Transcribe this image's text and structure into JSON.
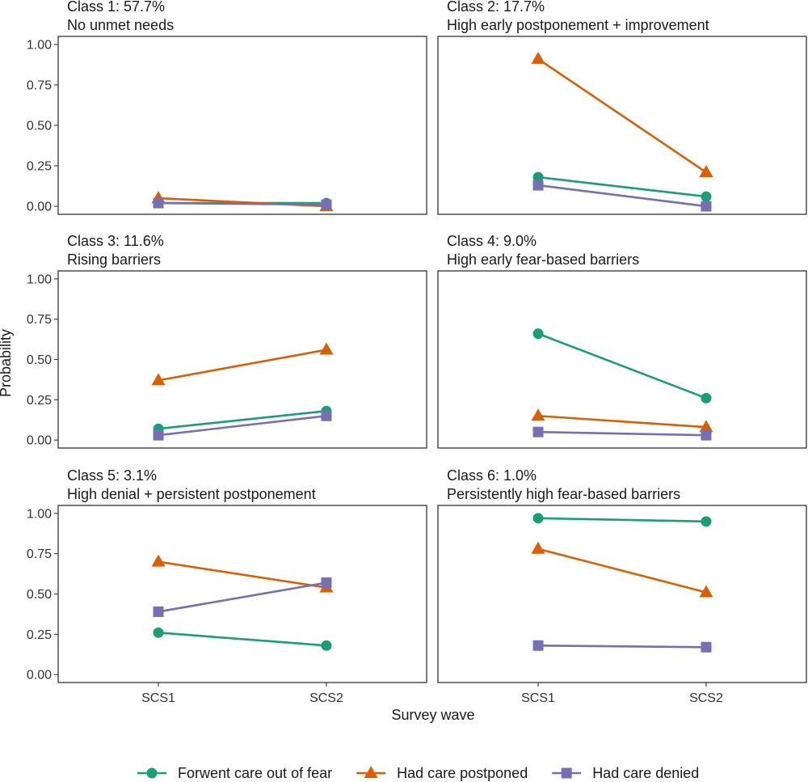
{
  "chart_data": {
    "type": "line",
    "xlabel": "Survey wave",
    "ylabel": "Probability",
    "categories": [
      "SCS1",
      "SCS2"
    ],
    "ylim": [
      0,
      1
    ],
    "yticks": [
      "0.00",
      "0.25",
      "0.50",
      "0.75",
      "1.00"
    ],
    "ytick_values": [
      0,
      0.25,
      0.5,
      0.75,
      1
    ],
    "legend": {
      "position": "bottom",
      "entries": [
        {
          "key": "fear",
          "label": "Forwent care out of fear",
          "color": "#1b9e77",
          "marker": "circle"
        },
        {
          "key": "postponed",
          "label": "Had care postponed",
          "color": "#d95f02",
          "marker": "triangle"
        },
        {
          "key": "denied",
          "label": "Had care denied",
          "color": "#7570b3",
          "marker": "square"
        }
      ]
    },
    "panels": [
      {
        "title": "Class 1: 57.7%",
        "subtitle": "No unmet needs",
        "series": {
          "fear": [
            0.02,
            0.02
          ],
          "postponed": [
            0.05,
            0.0
          ],
          "denied": [
            0.02,
            0.01
          ]
        }
      },
      {
        "title": "Class 2: 17.7%",
        "subtitle": "High early postponement + improvement",
        "series": {
          "fear": [
            0.18,
            0.06
          ],
          "postponed": [
            0.91,
            0.21
          ],
          "denied": [
            0.13,
            0.0
          ]
        }
      },
      {
        "title": "Class 3: 11.6%",
        "subtitle": "Rising barriers",
        "series": {
          "fear": [
            0.07,
            0.18
          ],
          "postponed": [
            0.37,
            0.56
          ],
          "denied": [
            0.03,
            0.15
          ]
        }
      },
      {
        "title": "Class 4: 9.0%",
        "subtitle": "High early fear-based barriers",
        "series": {
          "fear": [
            0.66,
            0.26
          ],
          "postponed": [
            0.15,
            0.08
          ],
          "denied": [
            0.05,
            0.03
          ]
        }
      },
      {
        "title": "Class 5: 3.1%",
        "subtitle": "High denial + persistent postponement",
        "series": {
          "fear": [
            0.26,
            0.18
          ],
          "postponed": [
            0.7,
            0.54
          ],
          "denied": [
            0.39,
            0.57
          ]
        }
      },
      {
        "title": "Class 6: 1.0%",
        "subtitle": "Persistently high fear-based barriers",
        "series": {
          "fear": [
            0.97,
            0.95
          ],
          "postponed": [
            0.78,
            0.51
          ],
          "denied": [
            0.18,
            0.17
          ]
        }
      }
    ]
  }
}
